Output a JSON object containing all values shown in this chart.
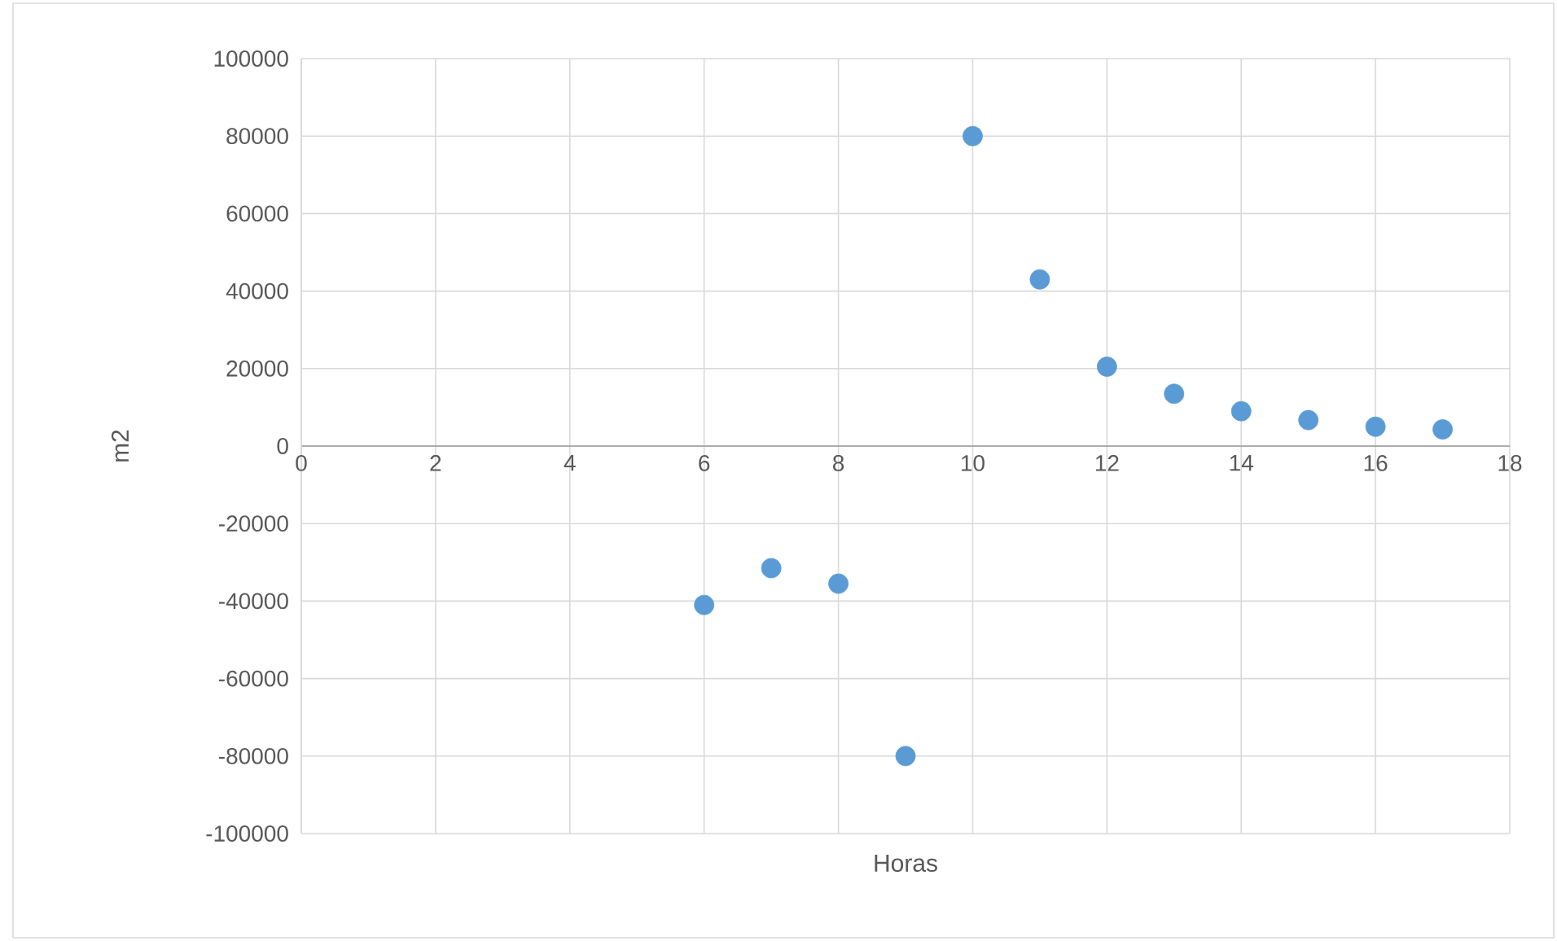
{
  "chart_data": {
    "type": "scatter",
    "xlabel": "Horas",
    "ylabel": "m2",
    "x": [
      6,
      7,
      8,
      9,
      10,
      11,
      12,
      13,
      14,
      15,
      16,
      17
    ],
    "values": [
      -41000,
      -31500,
      -35500,
      -80000,
      80000,
      43000,
      20500,
      13500,
      9000,
      6700,
      5000,
      4300
    ],
    "color": "#5b9bd5",
    "marker": "circle",
    "grid": true,
    "xlim": [
      0,
      18
    ],
    "xticks": [
      0,
      2,
      4,
      6,
      8,
      10,
      12,
      14,
      16,
      18
    ],
    "ylim": [
      -100000,
      100000
    ],
    "yticks": [
      -100000,
      -80000,
      -60000,
      -40000,
      -20000,
      0,
      20000,
      40000,
      60000,
      80000,
      100000
    ]
  }
}
